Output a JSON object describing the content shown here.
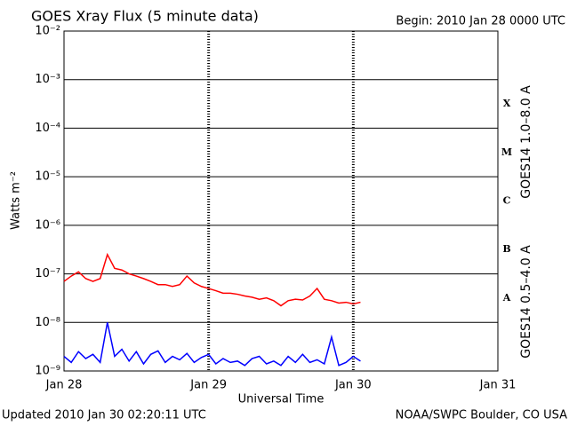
{
  "chart_data": {
    "type": "line",
    "title": "GOES Xray Flux (5 minute data)",
    "subtitle": "Begin:  2010 Jan 28 0000 UTC",
    "x_label": "Universal Time",
    "y_label": "Watts m⁻²",
    "footer_left": "Updated 2010 Jan 30 02:20:11 UTC",
    "footer_right": "NOAA/SWPC Boulder, CO USA",
    "log_scale": true,
    "grid": true,
    "xlim": [
      0,
      3
    ],
    "xticks": [
      {
        "value": 0,
        "label": "Jan 28"
      },
      {
        "value": 1,
        "label": "Jan 29"
      },
      {
        "value": 2,
        "label": "Jan 30"
      },
      {
        "value": 3,
        "label": "Jan 31"
      }
    ],
    "ylim": [
      1e-09,
      0.01
    ],
    "yticks": [
      {
        "value": 1e-09,
        "label": "10⁻⁹"
      },
      {
        "value": 1e-08,
        "label": "10⁻⁸"
      },
      {
        "value": 1e-07,
        "label": "10⁻⁷"
      },
      {
        "value": 1e-06,
        "label": "10⁻⁶"
      },
      {
        "value": 1e-05,
        "label": "10⁻⁵"
      },
      {
        "value": 0.0001,
        "label": "10⁻⁴"
      },
      {
        "value": 0.001,
        "label": "10⁻³"
      },
      {
        "value": 0.01,
        "label": "10⁻²"
      }
    ],
    "flare_classes": [
      {
        "label": "A",
        "value": 1e-08
      },
      {
        "label": "B",
        "value": 1e-07
      },
      {
        "label": "C",
        "value": 1e-06
      },
      {
        "label": "M",
        "value": 1e-05
      },
      {
        "label": "X",
        "value": 0.0001
      }
    ],
    "x": [
      0,
      0.05,
      0.1,
      0.15,
      0.2,
      0.25,
      0.3,
      0.35,
      0.4,
      0.45,
      0.5,
      0.55,
      0.6,
      0.65,
      0.7,
      0.75,
      0.8,
      0.85,
      0.9,
      0.95,
      1.0,
      1.05,
      1.1,
      1.15,
      1.2,
      1.25,
      1.3,
      1.35,
      1.4,
      1.45,
      1.5,
      1.55,
      1.6,
      1.65,
      1.7,
      1.75,
      1.8,
      1.85,
      1.9,
      1.95,
      2.0,
      2.05
    ],
    "series": [
      {
        "name": "GOES14 1.0–8.0 A",
        "color": "#ff0000",
        "values": [
          7e-08,
          9e-08,
          1.1e-07,
          8e-08,
          7e-08,
          8e-08,
          2.5e-07,
          1.3e-07,
          1.2e-07,
          1e-07,
          9e-08,
          8e-08,
          7e-08,
          6e-08,
          6e-08,
          5.5e-08,
          6e-08,
          9e-08,
          6.5e-08,
          5.5e-08,
          5e-08,
          4.5e-08,
          4e-08,
          4e-08,
          3.8e-08,
          3.5e-08,
          3.3e-08,
          3e-08,
          3.2e-08,
          2.8e-08,
          2.2e-08,
          2.8e-08,
          3e-08,
          2.9e-08,
          3.5e-08,
          5e-08,
          3e-08,
          2.8e-08,
          2.5e-08,
          2.6e-08,
          2.4e-08,
          2.6e-08
        ]
      },
      {
        "name": "GOES14 0.5–4.0 A",
        "color": "#0000ff",
        "values": [
          2e-09,
          1.5e-09,
          2.5e-09,
          1.8e-09,
          2.2e-09,
          1.5e-09,
          1e-08,
          2e-09,
          2.8e-09,
          1.6e-09,
          2.5e-09,
          1.4e-09,
          2.2e-09,
          2.6e-09,
          1.5e-09,
          2e-09,
          1.7e-09,
          2.3e-09,
          1.5e-09,
          1.9e-09,
          2.2e-09,
          1.4e-09,
          1.8e-09,
          1.5e-09,
          1.6e-09,
          1.3e-09,
          1.8e-09,
          2e-09,
          1.4e-09,
          1.6e-09,
          1.3e-09,
          2e-09,
          1.5e-09,
          2.2e-09,
          1.5e-09,
          1.7e-09,
          1.4e-09,
          5e-09,
          1.3e-09,
          1.5e-09,
          2e-09,
          1.6e-09
        ]
      }
    ]
  }
}
